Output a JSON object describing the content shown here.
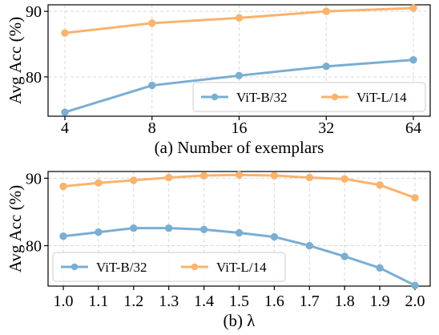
{
  "colors": {
    "vit_b32": "#7aaed3",
    "vit_l14": "#f9b36e"
  },
  "chart_data": [
    {
      "type": "line",
      "id": "a",
      "title": "(a) Number of exemplars",
      "ylabel": "Avg Acc (%)",
      "x_scale": "log2",
      "x": [
        4,
        8,
        16,
        32,
        64
      ],
      "x_tick_labels": [
        "4",
        "8",
        "16",
        "32",
        "64"
      ],
      "ylim": [
        74,
        91
      ],
      "y_ticks": [
        80,
        90
      ],
      "grid": true,
      "legend": "lower-right",
      "series": [
        {
          "name": "ViT-B/32",
          "color_key": "vit_b32",
          "values": [
            74.6,
            78.7,
            80.2,
            81.6,
            82.6
          ]
        },
        {
          "name": "ViT-L/14",
          "color_key": "vit_l14",
          "values": [
            86.7,
            88.2,
            89.0,
            90.0,
            90.5
          ]
        }
      ]
    },
    {
      "type": "line",
      "id": "b",
      "title": "(b) λ",
      "ylabel": "Avg Acc (%)",
      "x_scale": "linear",
      "x": [
        1.0,
        1.1,
        1.2,
        1.3,
        1.4,
        1.5,
        1.6,
        1.7,
        1.8,
        1.9,
        2.0
      ],
      "x_tick_labels": [
        "1.0",
        "1.1",
        "1.2",
        "1.3",
        "1.4",
        "1.5",
        "1.6",
        "1.7",
        "1.8",
        "1.9",
        "2.0"
      ],
      "ylim": [
        74,
        91
      ],
      "y_ticks": [
        80,
        90
      ],
      "grid": true,
      "legend": "lower-left",
      "series": [
        {
          "name": "ViT-B/32",
          "color_key": "vit_b32",
          "values": [
            81.4,
            82.0,
            82.6,
            82.6,
            82.4,
            81.9,
            81.3,
            80.0,
            78.4,
            76.7,
            74.1
          ]
        },
        {
          "name": "ViT-L/14",
          "color_key": "vit_l14",
          "values": [
            88.8,
            89.3,
            89.7,
            90.1,
            90.4,
            90.5,
            90.4,
            90.1,
            89.9,
            89.0,
            87.1
          ]
        }
      ]
    }
  ]
}
